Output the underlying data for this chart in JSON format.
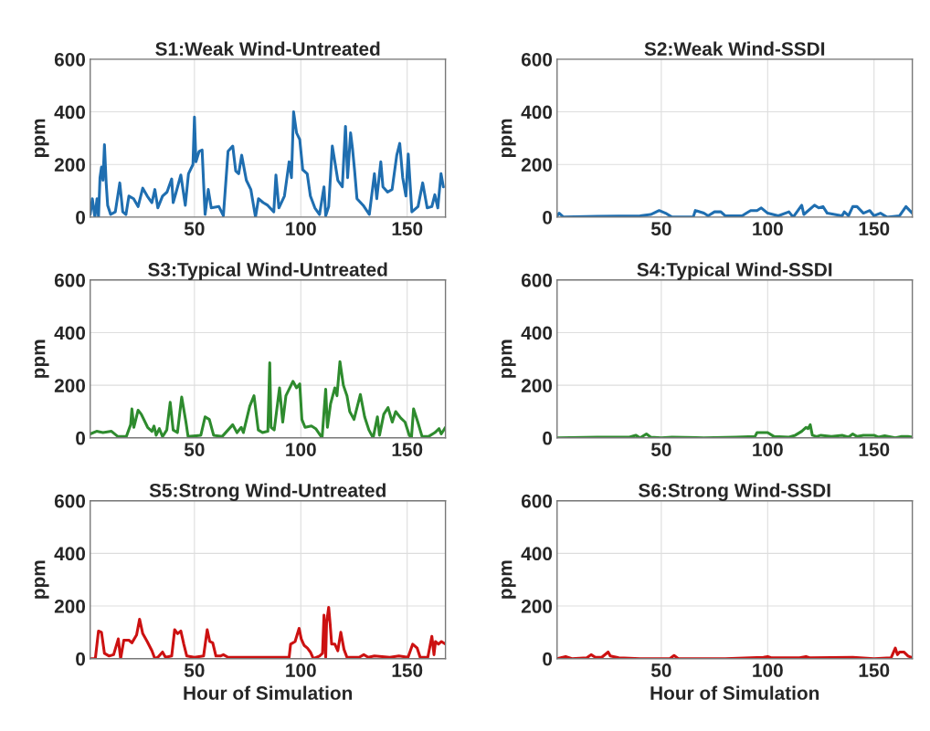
{
  "chart_data": [
    {
      "type": "line",
      "title": "S1:Weak Wind-Untreated",
      "ylabel": "ppm",
      "xlim": [
        1,
        168
      ],
      "xticks": [
        50,
        100,
        150
      ],
      "ylim": [
        0,
        600
      ],
      "yticks": [
        0,
        200,
        400,
        600
      ],
      "grid": true,
      "series": [
        {
          "color": "#1f6eb0",
          "x": [
            1,
            2,
            3.2,
            4.2,
            4.9,
            5.6,
            6.3,
            7,
            7.7,
            8.5,
            9.2,
            10.6,
            12.8,
            14.9,
            16.3,
            17.8,
            19.2,
            21.4,
            23.5,
            25.7,
            27.8,
            30,
            31.4,
            32.8,
            35,
            37.1,
            39.3,
            40,
            41.4,
            43.6,
            45.7,
            47.2,
            49.3,
            50,
            50.7,
            52.2,
            53.6,
            54.3,
            55,
            56.5,
            57.9,
            61.5,
            63.6,
            65.8,
            68,
            69.4,
            70.8,
            72.2,
            74.4,
            76.5,
            78.7,
            80.1,
            82.3,
            84.4,
            87.3,
            88.3,
            89.7,
            92.3,
            94.5,
            95.6,
            96.6,
            98,
            99.5,
            100.9,
            103,
            104.5,
            106.6,
            108.8,
            110.9,
            111.7,
            113.1,
            114.8,
            116,
            117.4,
            119.5,
            121,
            122,
            123.4,
            124.3,
            125.3,
            126.4,
            129.3,
            132.2,
            134.6,
            135.7,
            137.6,
            138.6,
            140.8,
            142.9,
            145.1,
            146.5,
            147.9,
            149.4,
            150.5,
            152.2,
            155.1,
            157.3,
            159.4,
            161.6,
            163,
            164.4,
            165.9,
            167
          ],
          "values": [
            10,
            70,
            0,
            70,
            0,
            150,
            190,
            140,
            275,
            130,
            45,
            10,
            20,
            130,
            20,
            10,
            80,
            70,
            40,
            110,
            80,
            55,
            105,
            35,
            80,
            95,
            145,
            55,
            95,
            160,
            45,
            165,
            200,
            380,
            210,
            250,
            255,
            130,
            10,
            105,
            35,
            40,
            5,
            250,
            270,
            175,
            165,
            235,
            140,
            105,
            0,
            70,
            55,
            45,
            20,
            160,
            35,
            80,
            210,
            150,
            400,
            320,
            295,
            180,
            165,
            80,
            35,
            10,
            115,
            5,
            40,
            270,
            210,
            140,
            115,
            345,
            150,
            320,
            260,
            175,
            70,
            45,
            10,
            165,
            70,
            210,
            115,
            95,
            105,
            235,
            280,
            150,
            80,
            240,
            20,
            40,
            130,
            35,
            40,
            85,
            35,
            165,
            115
          ]
        }
      ]
    },
    {
      "type": "line",
      "title": "S2:Weak Wind-SSDI",
      "ylabel": "ppm",
      "xlim": [
        1,
        168
      ],
      "xticks": [
        50,
        100,
        150
      ],
      "ylim": [
        0,
        600
      ],
      "yticks": [
        0,
        200,
        400,
        600
      ],
      "grid": true,
      "series": [
        {
          "color": "#1f6eb0",
          "x": [
            1,
            2,
            4,
            20,
            40,
            45,
            49,
            52,
            55,
            65,
            66,
            70,
            72,
            75,
            78,
            80,
            88,
            90,
            92,
            95,
            97,
            100,
            105,
            110,
            112,
            116,
            117,
            122,
            124,
            126,
            128,
            135,
            136,
            138,
            140,
            142,
            145,
            148,
            150,
            153,
            156,
            162,
            165,
            168
          ],
          "values": [
            5,
            15,
            0,
            3,
            5,
            10,
            25,
            15,
            0,
            0,
            25,
            15,
            5,
            20,
            20,
            5,
            5,
            15,
            25,
            25,
            35,
            15,
            5,
            20,
            0,
            45,
            10,
            45,
            35,
            40,
            15,
            5,
            20,
            5,
            40,
            40,
            15,
            25,
            5,
            15,
            0,
            5,
            40,
            15
          ]
        }
      ]
    },
    {
      "type": "line",
      "title": "S3:Typical Wind-Untreated",
      "ylabel": "ppm",
      "xlim": [
        1,
        168
      ],
      "xticks": [
        50,
        100,
        150
      ],
      "ylim": [
        0,
        600
      ],
      "yticks": [
        0,
        200,
        400,
        600
      ],
      "grid": true,
      "series": [
        {
          "color": "#2e8b2e",
          "x": [
            1,
            4,
            7,
            11,
            14,
            18,
            20,
            20.6,
            21.5,
            23.5,
            25,
            28,
            30,
            31,
            32,
            33.5,
            35,
            37,
            38.6,
            40,
            42,
            44,
            46,
            47,
            53,
            55,
            57,
            59,
            63,
            68,
            70,
            72,
            73,
            76,
            78,
            80,
            82,
            84.5,
            85.4,
            86,
            87.5,
            90,
            91.5,
            93,
            96.3,
            98,
            99.5,
            100.5,
            102,
            105,
            107,
            110,
            111.7,
            112.5,
            114,
            116,
            117,
            118.4,
            120,
            121.7,
            123,
            125,
            128,
            130,
            132,
            134,
            136,
            137,
            139,
            141,
            143,
            144.6,
            147,
            149,
            151,
            152,
            153,
            155,
            157,
            160,
            163,
            165,
            166,
            168
          ],
          "values": [
            15,
            25,
            20,
            25,
            5,
            5,
            50,
            110,
            40,
            105,
            90,
            40,
            25,
            45,
            10,
            35,
            5,
            30,
            135,
            30,
            20,
            155,
            60,
            5,
            10,
            80,
            70,
            10,
            5,
            50,
            20,
            40,
            20,
            120,
            160,
            30,
            20,
            25,
            285,
            40,
            30,
            190,
            60,
            160,
            215,
            190,
            205,
            70,
            40,
            45,
            35,
            0,
            185,
            40,
            130,
            190,
            160,
            290,
            200,
            160,
            100,
            70,
            165,
            80,
            30,
            0,
            80,
            10,
            90,
            115,
            60,
            100,
            75,
            60,
            10,
            0,
            110,
            60,
            5,
            5,
            20,
            35,
            15,
            40
          ]
        }
      ]
    },
    {
      "type": "line",
      "title": "S4:Typical Wind-SSDI",
      "ylabel": "ppm",
      "xlim": [
        1,
        168
      ],
      "xticks": [
        50,
        100,
        150
      ],
      "ylim": [
        0,
        600
      ],
      "yticks": [
        0,
        200,
        400,
        600
      ],
      "grid": true,
      "series": [
        {
          "color": "#2e8b2e",
          "x": [
            1,
            20,
            35,
            38,
            40,
            43,
            45,
            50,
            55,
            70,
            85,
            94,
            95,
            98,
            100,
            103,
            110,
            113,
            116,
            118,
            119,
            120,
            121,
            123,
            125,
            130,
            135,
            138,
            140,
            142,
            145,
            150,
            152,
            155,
            160,
            163,
            166,
            168
          ],
          "values": [
            0,
            3,
            3,
            10,
            0,
            15,
            3,
            0,
            3,
            0,
            3,
            5,
            20,
            20,
            20,
            5,
            3,
            10,
            25,
            40,
            35,
            50,
            10,
            5,
            10,
            5,
            10,
            3,
            15,
            5,
            10,
            10,
            3,
            8,
            0,
            5,
            5,
            3
          ]
        }
      ]
    },
    {
      "type": "line",
      "title": "S5:Strong Wind-Untreated",
      "ylabel": "ppm",
      "xlabel": "Hour of Simulation",
      "xlim": [
        1,
        168
      ],
      "xticks": [
        50,
        100,
        150
      ],
      "ylim": [
        0,
        600
      ],
      "yticks": [
        0,
        200,
        400,
        600
      ],
      "grid": true,
      "series": [
        {
          "color": "#cc1111",
          "x": [
            1,
            3.4,
            4.9,
            6.3,
            7.7,
            9.9,
            12,
            14.2,
            15.3,
            16.8,
            19.2,
            20.6,
            22.8,
            24.2,
            25.7,
            27.8,
            30,
            31.4,
            32.8,
            35,
            36.4,
            39.3,
            40.7,
            42.1,
            43.6,
            45,
            46.4,
            50,
            54.3,
            56,
            57.2,
            58.6,
            60.1,
            62.2,
            63.6,
            65.8,
            70.1,
            84.4,
            94.5,
            95.2,
            97.3,
            99.2,
            100.2,
            101.6,
            103.1,
            104.5,
            105.9,
            108.8,
            110.2,
            110.9,
            111.7,
            112.1,
            113.1,
            113.8,
            114.5,
            116,
            117.4,
            118.8,
            120.3,
            121.7,
            127.4,
            129.6,
            131.7,
            134.6,
            141.8,
            146.1,
            150.4,
            152.6,
            154.7,
            156.1,
            159.7,
            161.6,
            162.6,
            163.3,
            164.7,
            166.1,
            168
          ],
          "values": [
            0,
            0,
            105,
            100,
            20,
            10,
            15,
            75,
            0,
            70,
            70,
            60,
            90,
            150,
            95,
            65,
            30,
            0,
            5,
            25,
            5,
            10,
            110,
            95,
            105,
            55,
            10,
            5,
            10,
            110,
            65,
            60,
            10,
            10,
            15,
            5,
            5,
            5,
            5,
            55,
            65,
            115,
            75,
            50,
            40,
            25,
            0,
            10,
            20,
            165,
            5,
            135,
            195,
            130,
            55,
            55,
            30,
            100,
            35,
            5,
            5,
            15,
            5,
            10,
            5,
            10,
            5,
            55,
            40,
            5,
            5,
            85,
            15,
            65,
            55,
            65,
            55
          ]
        }
      ]
    },
    {
      "type": "line",
      "title": "S6:Strong Wind-SSDI",
      "ylabel": "ppm",
      "xlabel": "Hour of Simulation",
      "xlim": [
        1,
        168
      ],
      "xticks": [
        50,
        100,
        150
      ],
      "ylim": [
        0,
        600
      ],
      "yticks": [
        0,
        200,
        400,
        600
      ],
      "grid": true,
      "series": [
        {
          "color": "#cc1111",
          "x": [
            1,
            5,
            8,
            15,
            17,
            19,
            22,
            25,
            26,
            30,
            40,
            54,
            56,
            58,
            80,
            98,
            100,
            102,
            115,
            118,
            120,
            140,
            150,
            158,
            160,
            161,
            162,
            164,
            166,
            168
          ],
          "values": [
            0,
            8,
            0,
            3,
            15,
            5,
            5,
            25,
            10,
            3,
            0,
            0,
            12,
            0,
            0,
            5,
            8,
            3,
            3,
            8,
            3,
            5,
            0,
            3,
            40,
            15,
            25,
            25,
            10,
            3
          ]
        }
      ]
    }
  ]
}
